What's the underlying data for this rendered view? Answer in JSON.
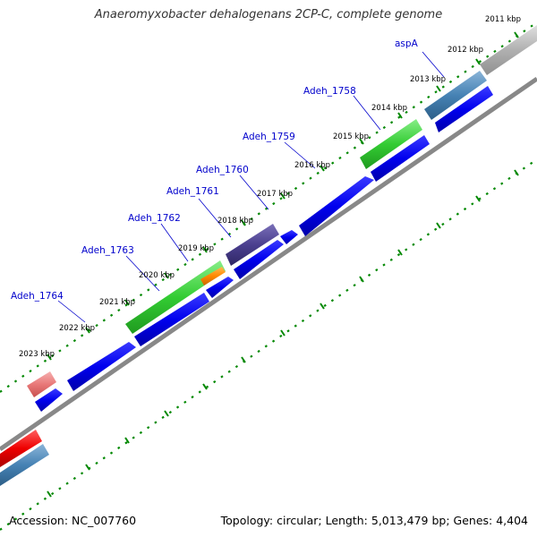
{
  "title": "Anaeromyxobacter dehalogenans 2CP-C, complete genome",
  "footer": {
    "accession": "Accession: NC_007760",
    "summary": "Topology: circular; Length: 5,013,479 bp; Genes: 4,404"
  },
  "kbp_labels": [
    "2011 kbp",
    "2012 kbp",
    "2013 kbp",
    "2014 kbp",
    "2015 kbp",
    "2016 kbp",
    "2017 kbp",
    "2018 kbp",
    "2019 kbp",
    "2020 kbp",
    "2021 kbp",
    "2022 kbp",
    "2023 kbp"
  ],
  "gene_labels": [
    "aspA",
    "Adeh_1758",
    "Adeh_1759",
    "Adeh_1760",
    "Adeh_1761",
    "Adeh_1762",
    "Adeh_1763",
    "Adeh_1764"
  ],
  "colors": {
    "tick": "#008800",
    "backbone": "#888888",
    "cds": "#0000ee",
    "label": "#0000cc",
    "green_feature": "#33cc33",
    "orange_feature": "#ff8800",
    "purple_feature": "#4b3f8f",
    "steelblue_feature": "#4682b4",
    "gray_feature": "#b0b0b0",
    "pink_feature": "#e87878",
    "red_feature": "#ee0000"
  }
}
